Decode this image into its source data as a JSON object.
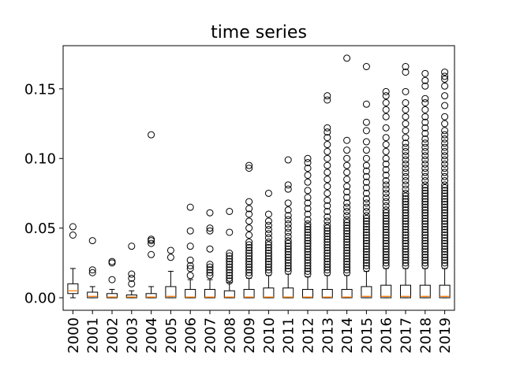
{
  "chart_data": {
    "type": "boxplot",
    "title": "time series",
    "xlabel": "",
    "ylabel": "",
    "ylim": [
      -0.009,
      0.181
    ],
    "yticks": [
      0.0,
      0.05,
      0.1,
      0.15
    ],
    "ytick_labels": [
      "0.00",
      "0.05",
      "0.10",
      "0.15"
    ],
    "categories": [
      "2000",
      "2001",
      "2002",
      "2003",
      "2004",
      "2005",
      "2006",
      "2007",
      "2008",
      "2009",
      "2010",
      "2011",
      "2012",
      "2013",
      "2014",
      "2015",
      "2016",
      "2017",
      "2018",
      "2019"
    ],
    "grid": false,
    "colors": {
      "box": "#000000",
      "median": "#ff7f0e",
      "flier": "#000000"
    },
    "series": [
      {
        "q1": 0.003,
        "median": 0.005,
        "q3": 0.01,
        "whisker_low": 0.0,
        "whisker_high": 0.021,
        "fliers": [
          0.045,
          0.051
        ]
      },
      {
        "q1": 0.0,
        "median": 0.001,
        "q3": 0.004,
        "whisker_low": 0.0,
        "whisker_high": 0.008,
        "fliers": [
          0.018,
          0.02,
          0.041
        ]
      },
      {
        "q1": 0.0,
        "median": 0.0005,
        "q3": 0.003,
        "whisker_low": 0.0,
        "whisker_high": 0.006,
        "fliers": [
          0.013,
          0.025,
          0.026
        ]
      },
      {
        "q1": 0.0,
        "median": 0.0005,
        "q3": 0.002,
        "whisker_low": 0.0,
        "whisker_high": 0.005,
        "fliers": [
          0.01,
          0.014,
          0.017,
          0.037
        ]
      },
      {
        "q1": 0.0,
        "median": 0.0005,
        "q3": 0.003,
        "whisker_low": 0.0,
        "whisker_high": 0.008,
        "fliers": [
          0.031,
          0.039,
          0.041,
          0.042,
          0.117
        ]
      },
      {
        "q1": 0.0,
        "median": 0.001,
        "q3": 0.008,
        "whisker_low": 0.0,
        "whisker_high": 0.019,
        "fliers": [
          0.029,
          0.034
        ]
      },
      {
        "q1": 0.0,
        "median": 0.0005,
        "q3": 0.006,
        "whisker_low": 0.0,
        "whisker_high": 0.013,
        "fliers": [
          0.016,
          0.021,
          0.023,
          0.027,
          0.037,
          0.048,
          0.065
        ]
      },
      {
        "q1": 0.0,
        "median": 0.0005,
        "q3": 0.006,
        "whisker_low": 0.0,
        "whisker_high": 0.013,
        "fliers": [
          0.016,
          0.018,
          0.02,
          0.022,
          0.024,
          0.035,
          0.048,
          0.05,
          0.061
        ]
      },
      {
        "q1": 0.0,
        "median": 0.0005,
        "q3": 0.005,
        "whisker_low": 0.0,
        "whisker_high": 0.011,
        "fliers": [
          0.012,
          0.014,
          0.016,
          0.018,
          0.02,
          0.022,
          0.024,
          0.026,
          0.028,
          0.03,
          0.032,
          0.047,
          0.062
        ]
      },
      {
        "q1": 0.0,
        "median": 0.0005,
        "q3": 0.006,
        "whisker_low": 0.0,
        "whisker_high": 0.014,
        "fliers": [
          0.016,
          0.018,
          0.02,
          0.022,
          0.024,
          0.026,
          0.028,
          0.03,
          0.032,
          0.034,
          0.036,
          0.038,
          0.04,
          0.045,
          0.05,
          0.055,
          0.06,
          0.064,
          0.069,
          0.093,
          0.095
        ]
      },
      {
        "q1": 0.0,
        "median": 0.0005,
        "q3": 0.007,
        "whisker_low": 0.0,
        "whisker_high": 0.016,
        "fliers": [
          0.018,
          0.02,
          0.022,
          0.024,
          0.026,
          0.028,
          0.03,
          0.032,
          0.034,
          0.036,
          0.038,
          0.04,
          0.043,
          0.046,
          0.049,
          0.052,
          0.055,
          0.06,
          0.075
        ]
      },
      {
        "q1": 0.0,
        "median": 0.0005,
        "q3": 0.007,
        "whisker_low": 0.0,
        "whisker_high": 0.017,
        "fliers": [
          0.019,
          0.021,
          0.023,
          0.025,
          0.027,
          0.029,
          0.031,
          0.033,
          0.035,
          0.037,
          0.039,
          0.041,
          0.044,
          0.047,
          0.05,
          0.053,
          0.056,
          0.059,
          0.063,
          0.068,
          0.078,
          0.081,
          0.099
        ]
      },
      {
        "q1": 0.0,
        "median": 0.0005,
        "q3": 0.006,
        "whisker_low": 0.0,
        "whisker_high": 0.015,
        "fliers": [
          0.017,
          0.019,
          0.021,
          0.023,
          0.025,
          0.027,
          0.029,
          0.031,
          0.033,
          0.035,
          0.037,
          0.039,
          0.041,
          0.043,
          0.045,
          0.047,
          0.049,
          0.051,
          0.053,
          0.056,
          0.06,
          0.064,
          0.068,
          0.072,
          0.077,
          0.083,
          0.088,
          0.093,
          0.097,
          0.1
        ]
      },
      {
        "q1": 0.0,
        "median": 0.0005,
        "q3": 0.006,
        "whisker_low": 0.0,
        "whisker_high": 0.016,
        "fliers": [
          0.018,
          0.02,
          0.022,
          0.024,
          0.026,
          0.028,
          0.03,
          0.032,
          0.034,
          0.036,
          0.038,
          0.04,
          0.042,
          0.044,
          0.046,
          0.048,
          0.05,
          0.052,
          0.055,
          0.058,
          0.062,
          0.066,
          0.07,
          0.075,
          0.08,
          0.085,
          0.09,
          0.095,
          0.1,
          0.105,
          0.11,
          0.115,
          0.119,
          0.122,
          0.142,
          0.145
        ]
      },
      {
        "q1": 0.0,
        "median": 0.0005,
        "q3": 0.006,
        "whisker_low": 0.0,
        "whisker_high": 0.016,
        "fliers": [
          0.018,
          0.02,
          0.022,
          0.024,
          0.026,
          0.028,
          0.03,
          0.032,
          0.034,
          0.036,
          0.038,
          0.04,
          0.042,
          0.044,
          0.046,
          0.048,
          0.05,
          0.052,
          0.054,
          0.056,
          0.059,
          0.062,
          0.065,
          0.068,
          0.072,
          0.076,
          0.08,
          0.085,
          0.09,
          0.095,
          0.1,
          0.106,
          0.113,
          0.172
        ]
      },
      {
        "q1": 0.0,
        "median": 0.001,
        "q3": 0.008,
        "whisker_low": 0.0,
        "whisker_high": 0.019,
        "fliers": [
          0.021,
          0.023,
          0.025,
          0.027,
          0.029,
          0.031,
          0.033,
          0.035,
          0.037,
          0.039,
          0.041,
          0.043,
          0.045,
          0.047,
          0.049,
          0.051,
          0.053,
          0.055,
          0.057,
          0.059,
          0.062,
          0.065,
          0.068,
          0.071,
          0.075,
          0.079,
          0.083,
          0.087,
          0.091,
          0.095,
          0.1,
          0.106,
          0.112,
          0.12,
          0.126,
          0.139,
          0.166
        ]
      },
      {
        "q1": 0.0,
        "median": 0.001,
        "q3": 0.009,
        "whisker_low": 0.0,
        "whisker_high": 0.021,
        "fliers": [
          0.023,
          0.025,
          0.027,
          0.029,
          0.031,
          0.033,
          0.035,
          0.037,
          0.039,
          0.041,
          0.043,
          0.045,
          0.047,
          0.049,
          0.051,
          0.053,
          0.055,
          0.057,
          0.059,
          0.061,
          0.063,
          0.066,
          0.069,
          0.072,
          0.075,
          0.078,
          0.081,
          0.084,
          0.088,
          0.092,
          0.096,
          0.1,
          0.105,
          0.11,
          0.115,
          0.122,
          0.13,
          0.135,
          0.14,
          0.145,
          0.148
        ]
      },
      {
        "q1": 0.0,
        "median": 0.001,
        "q3": 0.009,
        "whisker_low": 0.0,
        "whisker_high": 0.021,
        "fliers": [
          0.023,
          0.025,
          0.027,
          0.029,
          0.031,
          0.033,
          0.035,
          0.037,
          0.039,
          0.041,
          0.043,
          0.045,
          0.047,
          0.049,
          0.051,
          0.053,
          0.055,
          0.057,
          0.059,
          0.061,
          0.063,
          0.065,
          0.067,
          0.069,
          0.071,
          0.073,
          0.075,
          0.078,
          0.081,
          0.084,
          0.087,
          0.09,
          0.093,
          0.096,
          0.099,
          0.102,
          0.105,
          0.108,
          0.111,
          0.115,
          0.12,
          0.125,
          0.13,
          0.135,
          0.14,
          0.148,
          0.162,
          0.166
        ]
      },
      {
        "q1": 0.0,
        "median": 0.001,
        "q3": 0.009,
        "whisker_low": 0.0,
        "whisker_high": 0.021,
        "fliers": [
          0.023,
          0.025,
          0.027,
          0.029,
          0.031,
          0.033,
          0.035,
          0.037,
          0.039,
          0.041,
          0.043,
          0.045,
          0.047,
          0.049,
          0.051,
          0.053,
          0.055,
          0.057,
          0.059,
          0.061,
          0.063,
          0.065,
          0.067,
          0.069,
          0.071,
          0.073,
          0.075,
          0.077,
          0.079,
          0.081,
          0.084,
          0.087,
          0.09,
          0.093,
          0.096,
          0.099,
          0.102,
          0.105,
          0.108,
          0.111,
          0.114,
          0.118,
          0.122,
          0.126,
          0.13,
          0.135,
          0.14,
          0.143,
          0.152,
          0.156,
          0.161
        ]
      },
      {
        "q1": 0.0,
        "median": 0.001,
        "q3": 0.009,
        "whisker_low": 0.0,
        "whisker_high": 0.021,
        "fliers": [
          0.023,
          0.025,
          0.027,
          0.029,
          0.031,
          0.033,
          0.035,
          0.037,
          0.039,
          0.041,
          0.043,
          0.045,
          0.047,
          0.049,
          0.051,
          0.053,
          0.055,
          0.057,
          0.059,
          0.061,
          0.063,
          0.065,
          0.067,
          0.069,
          0.071,
          0.073,
          0.075,
          0.077,
          0.079,
          0.081,
          0.084,
          0.087,
          0.09,
          0.093,
          0.096,
          0.099,
          0.102,
          0.105,
          0.108,
          0.111,
          0.114,
          0.117,
          0.12,
          0.125,
          0.13,
          0.138,
          0.145,
          0.152,
          0.157,
          0.159,
          0.162
        ]
      }
    ]
  }
}
